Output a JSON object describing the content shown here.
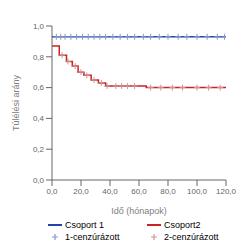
{
  "chart_data": {
    "type": "line",
    "title": "",
    "xlabel": "Idő (hónapok)",
    "ylabel": "Túlélési arány",
    "xlim": [
      0,
      120
    ],
    "ylim": [
      0.0,
      1.0
    ],
    "xticks": [
      {
        "value": 0,
        "label": "0,0"
      },
      {
        "value": 20.0,
        "label": "20,0"
      },
      {
        "value": 40.0,
        "label": "40,0"
      },
      {
        "value": 60.0,
        "label": "60,0"
      },
      {
        "value": 80.0,
        "label": "80,0"
      },
      {
        "value": 100.0,
        "label": "100,0"
      },
      {
        "value": 120.0,
        "label": "120,0"
      }
    ],
    "yticks": [
      {
        "value": 0.0,
        "label": "0,0"
      },
      {
        "value": 0.2,
        "label": "0,2"
      },
      {
        "value": 0.4,
        "label": "0,4"
      },
      {
        "value": 0.6,
        "label": "0,6"
      },
      {
        "value": 0.8,
        "label": "0,8"
      },
      {
        "value": 1.0,
        "label": "1,0"
      }
    ],
    "grid": false,
    "legend": "bottom",
    "series": [
      {
        "name": "Csoport 1",
        "type": "line",
        "line_style": "steps",
        "color": "#2244aa",
        "x": [
          0,
          120
        ],
        "values": [
          0.93,
          0.93
        ]
      },
      {
        "name": "Csoport2",
        "type": "line",
        "line_style": "solid",
        "color": "#cc2222",
        "x": [
          0,
          5,
          5,
          10,
          10,
          14,
          14,
          18,
          18,
          22,
          22,
          27,
          27,
          32,
          32,
          37,
          37,
          41,
          41,
          46,
          46,
          50,
          50,
          55,
          55,
          65,
          65,
          70,
          70,
          80,
          80,
          120
        ],
        "values": [
          0.87,
          0.87,
          0.81,
          0.81,
          0.77,
          0.77,
          0.74,
          0.74,
          0.7,
          0.7,
          0.68,
          0.68,
          0.65,
          0.65,
          0.63,
          0.63,
          0.61,
          0.61,
          0.61,
          0.61,
          0.61,
          0.61,
          0.61,
          0.61,
          0.61,
          0.61,
          0.6,
          0.6,
          0.6,
          0.6,
          0.6,
          0.6
        ]
      },
      {
        "name": "1-cenzúrázott",
        "type": "scatter",
        "marker": "+",
        "color": "#8899cc",
        "x": [
          3,
          6,
          9,
          13,
          17,
          21,
          25,
          29,
          33,
          37,
          42,
          47,
          52,
          57,
          63,
          68,
          74,
          80,
          87,
          93,
          100,
          107,
          114,
          119
        ],
        "values": [
          0.93,
          0.93,
          0.93,
          0.93,
          0.93,
          0.93,
          0.93,
          0.93,
          0.93,
          0.93,
          0.93,
          0.93,
          0.93,
          0.93,
          0.93,
          0.93,
          0.93,
          0.93,
          0.93,
          0.93,
          0.93,
          0.93,
          0.93,
          0.93
        ]
      },
      {
        "name": "2-cenzúrázott",
        "type": "scatter",
        "marker": "+",
        "color": "#cc9999",
        "x": [
          7,
          11,
          16,
          20,
          24,
          29,
          34,
          38,
          44,
          48,
          52,
          57,
          68,
          75,
          83,
          90,
          100,
          108,
          116
        ],
        "values": [
          0.81,
          0.77,
          0.74,
          0.7,
          0.68,
          0.65,
          0.63,
          0.61,
          0.61,
          0.61,
          0.61,
          0.61,
          0.6,
          0.6,
          0.6,
          0.6,
          0.6,
          0.6,
          0.6
        ]
      }
    ]
  }
}
